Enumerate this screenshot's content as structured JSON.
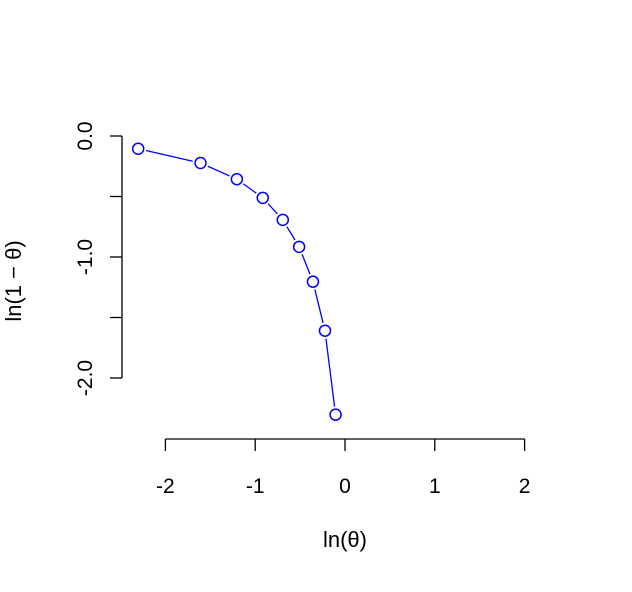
{
  "chart_data": {
    "type": "line",
    "title": "",
    "xlabel": "ln(θ)",
    "ylabel": "ln(1 − θ)",
    "xlim": [
      -2.2,
      2.2
    ],
    "ylim": [
      -2.5,
      0.1
    ],
    "x_ticks": [
      -2,
      -1,
      0,
      1,
      2
    ],
    "x_tick_labels": [
      "-2",
      "-1",
      "0",
      "1",
      "2"
    ],
    "y_ticks": [
      0,
      -0.5,
      -1,
      -1.5,
      -2
    ],
    "y_tick_labels": [
      "0.0",
      "",
      "-1.0",
      "",
      "-2.0"
    ],
    "grid": false,
    "legend": "none",
    "series": [
      {
        "color": "#0000ff",
        "marker": "open-circle",
        "x": [
          -2.303,
          -1.609,
          -1.204,
          -0.916,
          -0.693,
          -0.511,
          -0.357,
          -0.223,
          -0.105
        ],
        "y": [
          -0.105,
          -0.223,
          -0.357,
          -0.511,
          -0.693,
          -0.916,
          -1.204,
          -1.609,
          -2.303
        ]
      }
    ]
  }
}
